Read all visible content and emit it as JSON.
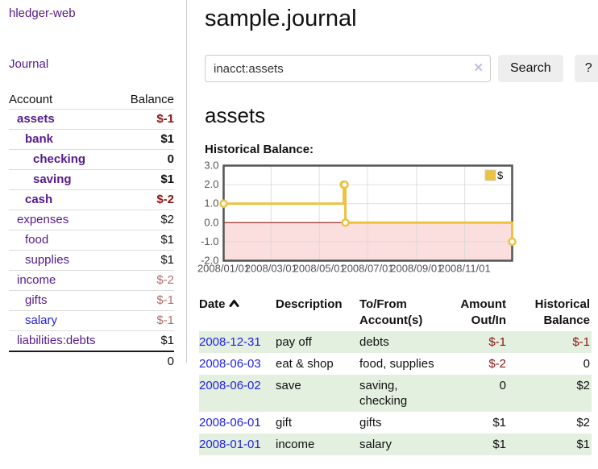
{
  "sidebar": {
    "brand": "hledger-web",
    "nav": [
      {
        "label": "Journal"
      }
    ],
    "accounts_table": {
      "headers": {
        "account": "Account",
        "balance": "Balance"
      },
      "rows": [
        {
          "account": "assets",
          "indent": 1,
          "bold": true,
          "balance": "$-1",
          "balance_style": "neg-strong",
          "link_style": "visited"
        },
        {
          "account": "bank",
          "indent": 2,
          "bold": true,
          "balance": "$1",
          "balance_style": "pos",
          "link_style": "visited"
        },
        {
          "account": "checking",
          "indent": 3,
          "bold": true,
          "balance": "0",
          "balance_style": "pos",
          "link_style": "visited"
        },
        {
          "account": "saving",
          "indent": 3,
          "bold": true,
          "balance": "$1",
          "balance_style": "pos",
          "link_style": "visited"
        },
        {
          "account": "cash",
          "indent": 2,
          "bold": true,
          "balance": "$-2",
          "balance_style": "neg-strong",
          "link_style": "visited"
        },
        {
          "account": "expenses",
          "indent": 1,
          "bold": false,
          "balance": "$2",
          "balance_style": "pos",
          "link_style": "visited"
        },
        {
          "account": "food",
          "indent": 2,
          "bold": false,
          "balance": "$1",
          "balance_style": "pos",
          "link_style": "visited"
        },
        {
          "account": "supplies",
          "indent": 2,
          "bold": false,
          "balance": "$1",
          "balance_style": "pos",
          "link_style": "visited"
        },
        {
          "account": "income",
          "indent": 1,
          "bold": false,
          "balance": "$-2",
          "balance_style": "neg-muted",
          "link_style": "visited"
        },
        {
          "account": "gifts",
          "indent": 2,
          "bold": false,
          "balance": "$-1",
          "balance_style": "neg-muted",
          "link_style": "visited"
        },
        {
          "account": "salary",
          "indent": 2,
          "bold": false,
          "balance": "$-1",
          "balance_style": "neg-muted",
          "link_style": "unvisited"
        },
        {
          "account": "liabilities:debts",
          "indent": 1,
          "bold": false,
          "balance": "$1",
          "balance_style": "pos",
          "link_style": "visited"
        }
      ],
      "total": "0"
    }
  },
  "header": {
    "title": "sample.journal"
  },
  "search": {
    "value": "inacct:assets",
    "clear_icon": "✕",
    "button_label": "Search",
    "help_label": "?"
  },
  "main": {
    "account_heading": "assets",
    "chart_label": "Historical Balance:"
  },
  "chart_data": {
    "type": "line",
    "title": "Historical Balance:",
    "style": "steps",
    "series": [
      {
        "name": "$",
        "color": "#edc240",
        "points": [
          [
            "2008-01-01",
            1
          ],
          [
            "2008-06-01",
            2
          ],
          [
            "2008-06-02",
            2
          ],
          [
            "2008-06-03",
            0
          ],
          [
            "2008-12-31",
            -1
          ]
        ]
      }
    ],
    "x_range": [
      "2008-01-01",
      "2008-12-31"
    ],
    "ylim": [
      -2,
      3
    ],
    "ytick_labels": [
      "3.0",
      "2.0",
      "1.0",
      "0.0",
      "-1.0",
      "-2.0"
    ],
    "ytick_values": [
      3,
      2,
      1,
      0,
      -1,
      -2
    ],
    "xtick_labels": [
      "2008/01/01",
      "2008/03/01",
      "2008/05/01",
      "2008/07/01",
      "2008/09/01",
      "2008/11/01"
    ],
    "legend": {
      "label": "$",
      "swatch_color": "#edc240",
      "position": "top-right"
    },
    "grid": true,
    "negative_region_fill": "#fbdede",
    "zero_line_color": "#8b0000",
    "border_color": "#545454",
    "tick_text_color": "#545454"
  },
  "register": {
    "headers": {
      "date": "Date",
      "description": "Description",
      "accounts": "To/From Account(s)",
      "amount": "Amount Out/In",
      "balance": "Historical Balance"
    },
    "rows": [
      {
        "date": "2008-12-31",
        "description": "pay off",
        "accounts": "debts",
        "amount": "$-1",
        "amount_neg": true,
        "balance": "$-1",
        "balance_neg": true
      },
      {
        "date": "2008-06-03",
        "description": "eat & shop",
        "accounts": "food, supplies",
        "amount": "$-2",
        "amount_neg": true,
        "balance": "0",
        "balance_neg": false
      },
      {
        "date": "2008-06-02",
        "description": "save",
        "accounts": "saving, checking",
        "amount": "0",
        "amount_neg": false,
        "balance": "$2",
        "balance_neg": false
      },
      {
        "date": "2008-06-01",
        "description": "gift",
        "accounts": "gifts",
        "amount": "$1",
        "amount_neg": false,
        "balance": "$2",
        "balance_neg": false
      },
      {
        "date": "2008-01-01",
        "description": "income",
        "accounts": "salary",
        "amount": "$1",
        "amount_neg": false,
        "balance": "$1",
        "balance_neg": false
      }
    ]
  },
  "colors": {
    "link_visited": "#551a8b",
    "link_unvisited": "#2222e6",
    "negative_strong": "#8b1414",
    "negative_muted": "#b36a6a",
    "stripe_green": "#e3efdf",
    "chart_yellow": "#edc240"
  }
}
